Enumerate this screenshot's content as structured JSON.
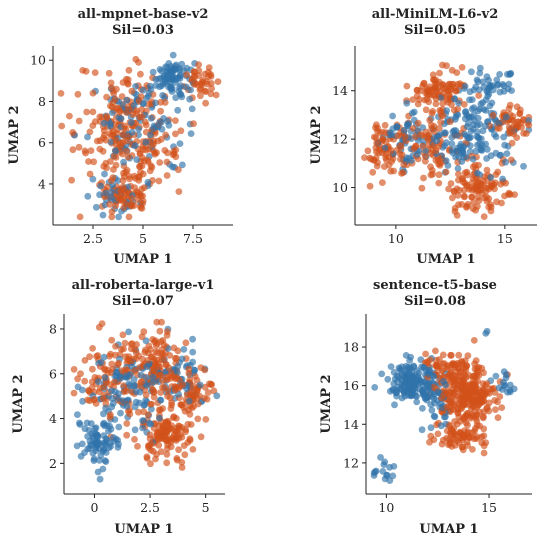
{
  "colors": {
    "blue": "#2f73aa",
    "orange": "#d2521a"
  },
  "chart_data": [
    {
      "type": "scatter",
      "title": "all-mpnet-base-v2",
      "subtitle": "Sil=0.03",
      "xlabel": "UMAP 1",
      "ylabel": "UMAP 2",
      "xlim": [
        0.8,
        9.2
      ],
      "ylim": [
        2.3,
        10.4
      ],
      "xticks": [
        2.5,
        5.0,
        7.5
      ],
      "yticks": [
        4,
        6,
        8,
        10
      ],
      "clusters": [
        {
          "color": "orange",
          "cx": 4.2,
          "cy": 6.4,
          "sx": 1.6,
          "sy": 1.9,
          "n": 240
        },
        {
          "color": "orange",
          "cx": 4.0,
          "cy": 3.4,
          "sx": 0.9,
          "sy": 0.6,
          "n": 70
        },
        {
          "color": "orange",
          "cx": 7.9,
          "cy": 8.9,
          "sx": 0.5,
          "sy": 0.6,
          "n": 40
        },
        {
          "color": "blue",
          "cx": 6.6,
          "cy": 9.1,
          "sx": 0.6,
          "sy": 0.6,
          "n": 70
        },
        {
          "color": "blue",
          "cx": 4.8,
          "cy": 7.0,
          "sx": 1.7,
          "sy": 1.6,
          "n": 110
        },
        {
          "color": "blue",
          "cx": 3.6,
          "cy": 3.4,
          "sx": 0.9,
          "sy": 0.8,
          "n": 35
        }
      ]
    },
    {
      "type": "scatter",
      "title": "all-MiniLM-L6-v2",
      "subtitle": "Sil=0.05",
      "xlabel": "UMAP 1",
      "ylabel": "UMAP 2",
      "xlim": [
        8.4,
        16.2
      ],
      "ylim": [
        8.7,
        15.6
      ],
      "xticks": [
        10,
        15
      ],
      "yticks": [
        10,
        12,
        14
      ],
      "clusters": [
        {
          "color": "orange",
          "cx": 12.0,
          "cy": 14.0,
          "sx": 0.9,
          "sy": 0.6,
          "n": 90
        },
        {
          "color": "orange",
          "cx": 9.6,
          "cy": 11.5,
          "sx": 0.7,
          "sy": 0.7,
          "n": 70
        },
        {
          "color": "orange",
          "cx": 13.8,
          "cy": 10.0,
          "sx": 0.9,
          "sy": 0.8,
          "n": 110
        },
        {
          "color": "orange",
          "cx": 15.3,
          "cy": 12.6,
          "sx": 0.5,
          "sy": 0.5,
          "n": 50
        },
        {
          "color": "orange",
          "cx": 11.6,
          "cy": 11.7,
          "sx": 1.3,
          "sy": 1.1,
          "n": 90
        },
        {
          "color": "blue",
          "cx": 13.6,
          "cy": 12.2,
          "sx": 1.2,
          "sy": 1.0,
          "n": 150
        },
        {
          "color": "blue",
          "cx": 14.3,
          "cy": 14.3,
          "sx": 0.7,
          "sy": 0.5,
          "n": 40
        },
        {
          "color": "blue",
          "cx": 10.6,
          "cy": 12.0,
          "sx": 0.9,
          "sy": 0.8,
          "n": 60
        }
      ]
    },
    {
      "type": "scatter",
      "title": "all-roberta-large-v1",
      "subtitle": "Sil=0.07",
      "xlabel": "UMAP 1",
      "ylabel": "UMAP 2",
      "xlim": [
        -1.1,
        5.6
      ],
      "ylim": [
        0.9,
        8.4
      ],
      "xticks": [
        0.0,
        2.5,
        5.0
      ],
      "yticks": [
        2,
        4,
        6,
        8
      ],
      "clusters": [
        {
          "color": "orange",
          "cx": 2.6,
          "cy": 6.2,
          "sx": 1.2,
          "sy": 1.1,
          "n": 160
        },
        {
          "color": "orange",
          "cx": 3.2,
          "cy": 3.4,
          "sx": 1.0,
          "sy": 0.9,
          "n": 130
        },
        {
          "color": "orange",
          "cx": 4.4,
          "cy": 5.2,
          "sx": 0.6,
          "sy": 0.6,
          "n": 50
        },
        {
          "color": "orange",
          "cx": 0.3,
          "cy": 5.6,
          "sx": 0.8,
          "sy": 1.2,
          "n": 70
        },
        {
          "color": "blue",
          "cx": 0.2,
          "cy": 3.0,
          "sx": 0.6,
          "sy": 0.9,
          "n": 80
        },
        {
          "color": "blue",
          "cx": 1.6,
          "cy": 5.2,
          "sx": 1.2,
          "sy": 1.3,
          "n": 110
        },
        {
          "color": "blue",
          "cx": 3.8,
          "cy": 5.8,
          "sx": 0.9,
          "sy": 1.0,
          "n": 50
        }
      ]
    },
    {
      "type": "scatter",
      "title": "sentence-t5-base",
      "subtitle": "Sil=0.08",
      "xlabel": "UMAP 1",
      "ylabel": "UMAP 2",
      "xlim": [
        9.3,
        16.8
      ],
      "ylim": [
        10.7,
        19.4
      ],
      "xticks": [
        10,
        15
      ],
      "yticks": [
        12,
        14,
        16,
        18
      ],
      "clusters": [
        {
          "color": "blue",
          "cx": 11.3,
          "cy": 16.2,
          "sx": 0.8,
          "sy": 0.7,
          "n": 150
        },
        {
          "color": "blue",
          "cx": 12.4,
          "cy": 15.2,
          "sx": 0.7,
          "sy": 0.8,
          "n": 50
        },
        {
          "color": "blue",
          "cx": 9.9,
          "cy": 11.6,
          "sx": 0.4,
          "sy": 0.4,
          "n": 15
        },
        {
          "color": "blue",
          "cx": 15.7,
          "cy": 16.0,
          "sx": 0.4,
          "sy": 0.4,
          "n": 15
        },
        {
          "color": "blue",
          "cx": 14.8,
          "cy": 18.8,
          "sx": 0.1,
          "sy": 0.1,
          "n": 2
        },
        {
          "color": "orange",
          "cx": 14.0,
          "cy": 15.4,
          "sx": 1.0,
          "sy": 1.1,
          "n": 260
        },
        {
          "color": "orange",
          "cx": 13.0,
          "cy": 16.8,
          "sx": 0.9,
          "sy": 0.6,
          "n": 60
        },
        {
          "color": "orange",
          "cx": 13.6,
          "cy": 13.3,
          "sx": 0.9,
          "sy": 0.5,
          "n": 60
        }
      ]
    }
  ]
}
